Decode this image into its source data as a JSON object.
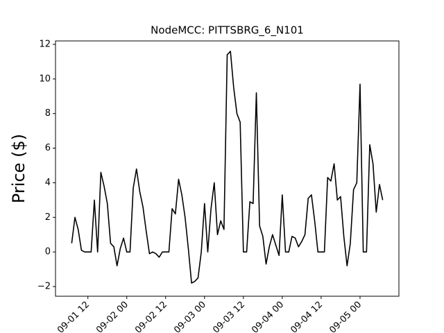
{
  "chart_data": {
    "type": "line",
    "title": "NodeMCC: PITTSBRG_6_N101",
    "y_label": "Price ($)",
    "x": [
      "09-01 07",
      "09-01 08",
      "09-01 09",
      "09-01 10",
      "09-01 11",
      "09-01 12",
      "09-01 13",
      "09-01 14",
      "09-01 15",
      "09-01 16",
      "09-01 17",
      "09-01 18",
      "09-01 19",
      "09-01 20",
      "09-01 21",
      "09-01 22",
      "09-01 23",
      "09-02 00",
      "09-02 01",
      "09-02 02",
      "09-02 03",
      "09-02 04",
      "09-02 05",
      "09-02 06",
      "09-02 07",
      "09-02 08",
      "09-02 09",
      "09-02 10",
      "09-02 11",
      "09-02 12",
      "09-02 13",
      "09-02 14",
      "09-02 15",
      "09-02 16",
      "09-02 17",
      "09-02 18",
      "09-02 19",
      "09-02 20",
      "09-02 21",
      "09-02 22",
      "09-02 23",
      "09-03 00",
      "09-03 01",
      "09-03 02",
      "09-03 03",
      "09-03 04",
      "09-03 05",
      "09-03 06",
      "09-03 07",
      "09-03 08",
      "09-03 09",
      "09-03 10",
      "09-03 11",
      "09-03 12",
      "09-03 13",
      "09-03 14",
      "09-03 15",
      "09-03 16",
      "09-03 17",
      "09-03 18",
      "09-03 19",
      "09-03 20",
      "09-03 21",
      "09-03 22",
      "09-03 23",
      "09-04 00",
      "09-04 01",
      "09-04 02",
      "09-04 03",
      "09-04 04",
      "09-04 05",
      "09-04 06",
      "09-04 07",
      "09-04 08",
      "09-04 09",
      "09-04 10",
      "09-04 11",
      "09-04 12",
      "09-04 13",
      "09-04 14",
      "09-04 15",
      "09-04 16",
      "09-04 17",
      "09-04 18",
      "09-04 19",
      "09-04 20",
      "09-04 21",
      "09-04 22",
      "09-04 23",
      "09-05 00",
      "09-05 01",
      "09-05 02",
      "09-05 03",
      "09-05 04",
      "09-05 05",
      "09-05 06",
      "09-05 07"
    ],
    "series": [
      {
        "color": "#000000",
        "values": [
          0.5,
          2.0,
          1.3,
          0.1,
          0.0,
          0.0,
          0.0,
          3.0,
          0.0,
          4.6,
          3.8,
          2.8,
          0.5,
          0.3,
          -0.8,
          0.2,
          0.8,
          0.0,
          0.0,
          3.7,
          4.8,
          3.5,
          2.6,
          1.2,
          -0.1,
          0.0,
          -0.1,
          -0.3,
          0.0,
          0.0,
          0.0,
          2.5,
          2.2,
          4.2,
          3.3,
          2.0,
          0.2,
          -1.8,
          -1.7,
          -1.5,
          0.0,
          2.8,
          0.0,
          2.5,
          4.0,
          1.0,
          1.8,
          1.3,
          11.4,
          11.6,
          9.5,
          8.0,
          7.5,
          0.0,
          0.0,
          2.9,
          2.8,
          9.2,
          1.5,
          0.9,
          -0.7,
          0.3,
          1.0,
          0.4,
          -0.2,
          3.3,
          0.0,
          0.0,
          0.9,
          0.8,
          0.3,
          0.6,
          1.0,
          3.1,
          3.3,
          1.8,
          0.0,
          0.0,
          0.0,
          4.3,
          4.1,
          5.1,
          3.0,
          3.2,
          0.9,
          -0.8,
          0.5,
          3.6,
          4.0,
          9.7,
          0.0,
          0.0,
          6.2,
          5.1,
          2.3,
          3.9,
          3.0
        ]
      }
    ],
    "xlim": [
      "09-01 02",
      "09-05 12"
    ],
    "xticks": [
      "09-01 12",
      "09-02 00",
      "09-02 12",
      "09-03 00",
      "09-03 12",
      "09-04 00",
      "09-04 12",
      "09-05 00"
    ],
    "ylim": [
      -2.56,
      12.2
    ],
    "yticks": [
      {
        "value": -2,
        "label": "−2"
      },
      0,
      2,
      4,
      6,
      8,
      10,
      12
    ]
  }
}
